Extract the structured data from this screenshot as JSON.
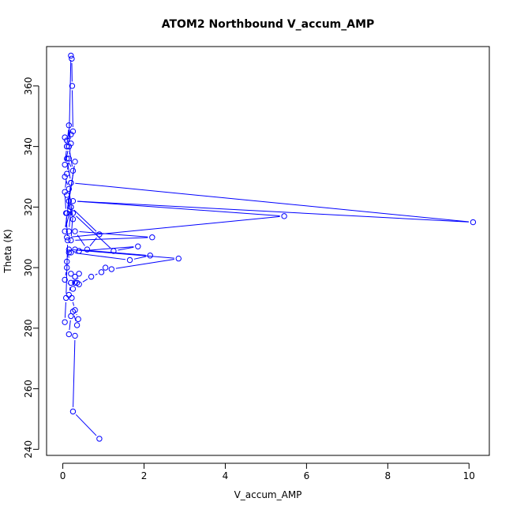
{
  "chart_data": {
    "type": "line",
    "title": "ATOM2 Northbound V_accum_AMP",
    "xlabel": "V_accum_AMP",
    "ylabel": "Theta (K)",
    "xlim": [
      -0.4,
      10.5
    ],
    "ylim": [
      238,
      373
    ],
    "x_ticks": [
      0,
      2,
      4,
      6,
      8,
      10
    ],
    "x_tick_labels": [
      "0",
      "2",
      "4",
      "6",
      "8",
      "10"
    ],
    "y_ticks": [
      240,
      260,
      280,
      300,
      320,
      340,
      360
    ],
    "y_tick_labels": [
      "240",
      "260",
      "280",
      "300",
      "320",
      "340",
      "360"
    ],
    "grid": false,
    "legend": "none",
    "color": "#0000ff",
    "series": [
      {
        "marker": "open-circle",
        "x": [
          0.9,
          0.25,
          0.3,
          0.15,
          0.2,
          0.25,
          0.35,
          0.38,
          0.3,
          0.22,
          0.15,
          0.2,
          0.3,
          0.25,
          0.05,
          0.1,
          0.2,
          0.3,
          0.4,
          0.35,
          0.4,
          0.7,
          0.95,
          1.05,
          1.2,
          2.85,
          0.15,
          0.1,
          0.2,
          1.65,
          2.15,
          0.3,
          0.15,
          0.4,
          1.85,
          1.25,
          0.25,
          0.2,
          2.2,
          0.3,
          0.6,
          0.9,
          0.2,
          0.15,
          0.1,
          5.45,
          0.25,
          10.1,
          0.2,
          0.1,
          0.3,
          0.15,
          0.05,
          0.2,
          0.1,
          0.25,
          0.15,
          0.05,
          0.2,
          0.1,
          0.25,
          0.15,
          0.05,
          0.1,
          0.2,
          0.25,
          0.23,
          0.22,
          0.2,
          0.15,
          0.1,
          0.05,
          0.1,
          0.15,
          0.2,
          0.15,
          0.1,
          0.05,
          0.08,
          0.12,
          0.08,
          0.05
        ],
        "y": [
          243.5,
          252.5,
          277.5,
          278,
          284,
          285.5,
          281,
          283,
          286,
          290,
          291,
          295,
          297,
          293,
          296,
          300,
          298,
          295,
          298,
          295,
          294.5,
          297,
          298.5,
          300,
          299.5,
          303,
          306,
          302,
          305,
          302.5,
          304,
          306,
          305,
          305.5,
          307,
          305.5,
          318,
          309,
          310,
          312,
          306,
          311,
          320,
          312,
          310,
          317,
          322,
          315,
          328,
          318,
          335,
          322,
          312,
          320,
          324,
          316,
          326,
          330,
          328,
          336,
          332,
          340,
          334,
          340,
          344,
          345,
          360,
          369,
          370,
          340,
          342,
          343,
          340,
          347,
          341,
          336,
          331,
          325,
          318,
          309,
          290,
          282
        ]
      }
    ]
  }
}
